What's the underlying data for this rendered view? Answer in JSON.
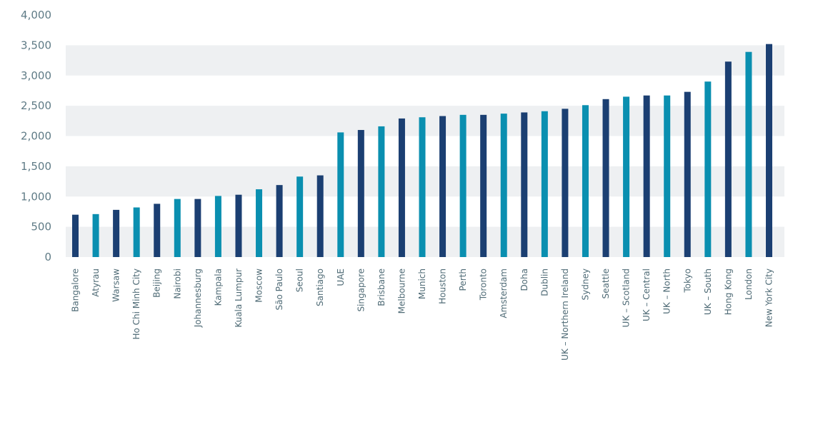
{
  "chart_data": {
    "type": "bar",
    "title": "",
    "xlabel": "",
    "ylabel": "",
    "ylim": [
      0,
      4000
    ],
    "yticks": [
      0,
      500,
      1000,
      1500,
      2000,
      2500,
      3000,
      3500,
      4000
    ],
    "ytick_labels": [
      "0",
      "500",
      "1,000",
      "1,500",
      "2,000",
      "2,500",
      "3,000",
      "3,500",
      "4,000"
    ],
    "grid": "alternating horizontal bands",
    "colors": {
      "dark": "#1b3f72",
      "light": "#0a8fb0",
      "band": "#eef0f2",
      "tick_text": "#5f7b86"
    },
    "categories": [
      "Bangalore",
      "Atyrau",
      "Warsaw",
      "Ho Chi Minh City",
      "Beijing",
      "Nairobi",
      "Johannesburg",
      "Kampala",
      "Kuala Lumpur",
      "Moscow",
      "São Paulo",
      "Seoul",
      "Santiago",
      "UAE",
      "Singapore",
      "Brisbane",
      "Melbourne",
      "Munich",
      "Houston",
      "Perth",
      "Toronto",
      "Amsterdam",
      "Doha",
      "Dublin",
      "UK – Northern Ireland",
      "Sydney",
      "Seattle",
      "UK – Scotland",
      "UK – Central",
      "UK – North",
      "Tokyo",
      "UK – South",
      "Hong Kong",
      "London",
      "New York City"
    ],
    "values": [
      700,
      710,
      780,
      820,
      880,
      960,
      960,
      1010,
      1030,
      1120,
      1190,
      1330,
      1350,
      2060,
      2100,
      2160,
      2290,
      2310,
      2330,
      2350,
      2350,
      2370,
      2390,
      2410,
      2450,
      2510,
      2610,
      2650,
      2670,
      2670,
      2730,
      2900,
      3230,
      3390,
      3520
    ],
    "bar_colors": [
      "dark",
      "light",
      "dark",
      "light",
      "dark",
      "light",
      "dark",
      "light",
      "dark",
      "light",
      "dark",
      "light",
      "dark",
      "light",
      "dark",
      "light",
      "dark",
      "light",
      "dark",
      "light",
      "dark",
      "light",
      "dark",
      "light",
      "dark",
      "light",
      "dark",
      "light",
      "dark",
      "light",
      "dark",
      "light",
      "dark",
      "light",
      "dark"
    ]
  }
}
